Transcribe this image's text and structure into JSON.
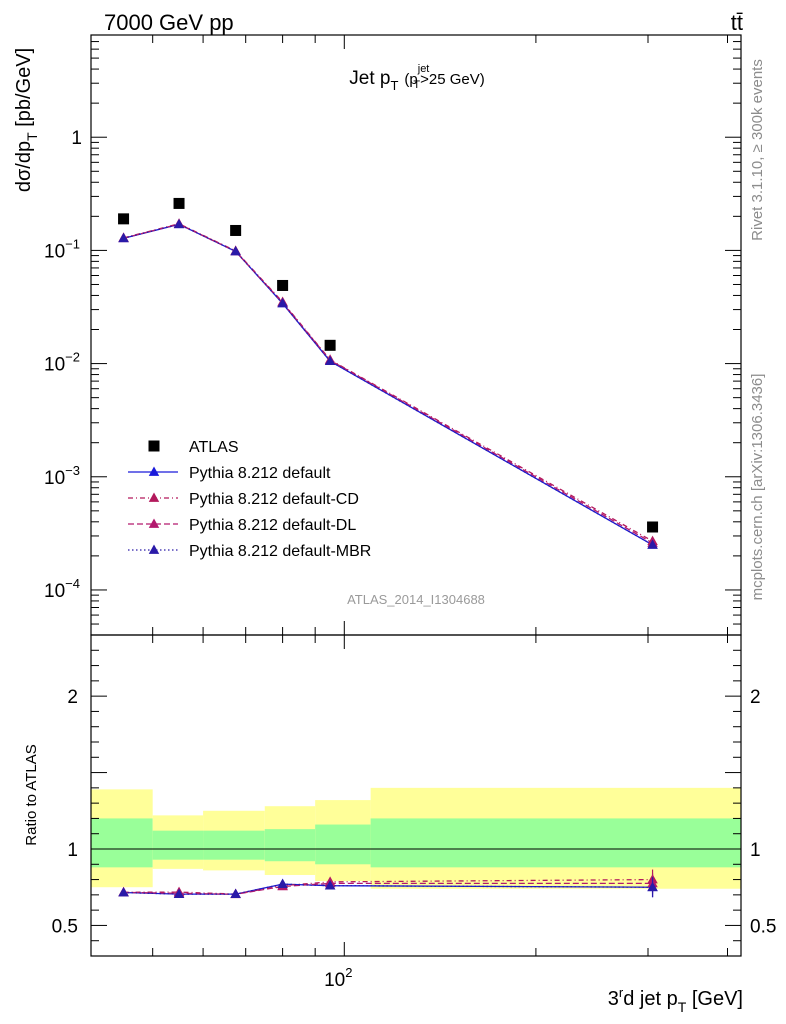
{
  "header": {
    "left": "7000 GeV pp",
    "right": "tt̄"
  },
  "side_labels": {
    "rivet": "Rivet 3.1.10, ≥ 300k events",
    "mcplots": "mcplots.cern.ch [arXiv:1306.3436]"
  },
  "chart_data": [
    {
      "type": "scatter",
      "panel": "main",
      "title": "Jet p_T (p_T^jet > 25 GeV)",
      "title_parts": {
        "main": "Jet p",
        "main_sub": "T",
        "cut_open": "(p",
        "cut_sup": "jet",
        "cut_sub": "T",
        "cut_close": ">25 GeV)"
      },
      "ylabel": "dσ/dp_T [pb/GeV]",
      "ylabel_parts": {
        "a": "dσ/dp",
        "sub": "T",
        "b": " [pb/GeV]"
      },
      "xscale": "log",
      "yscale": "log",
      "xlim": [
        40,
        420
      ],
      "ylim": [
        4e-05,
        8
      ],
      "ytick_labels": [
        {
          "base": "10",
          "exp": "−4",
          "value": 0.0001
        },
        {
          "base": "10",
          "exp": "−3",
          "value": 0.001
        },
        {
          "base": "10",
          "exp": "−2",
          "value": 0.01
        },
        {
          "base": "10",
          "exp": "−1",
          "value": 0.1
        },
        {
          "base": "1",
          "exp": "",
          "value": 1
        }
      ],
      "watermark": "ATLAS_2014_I1304688",
      "legend_position": "bottom-left",
      "x": [
        45,
        55,
        67.5,
        80,
        95,
        305
      ],
      "series": [
        {
          "name": "ATLAS",
          "marker": "square",
          "color": "#000000",
          "line": "none",
          "values": [
            0.19,
            0.26,
            0.15,
            0.049,
            0.0145,
            0.00036
          ]
        },
        {
          "name": "Pythia 8.212 default",
          "marker": "triangle",
          "color": "#1a1adb",
          "line": "solid",
          "values": [
            0.128,
            0.17,
            0.098,
            0.034,
            0.0105,
            0.00025
          ]
        },
        {
          "name": "Pythia 8.212 default-CD",
          "marker": "triangle",
          "color": "#b3195c",
          "line": "dashdot",
          "values": [
            0.129,
            0.172,
            0.099,
            0.035,
            0.0108,
            0.00027
          ]
        },
        {
          "name": "Pythia 8.212 default-DL",
          "marker": "triangle",
          "color": "#b3196e",
          "line": "dashed",
          "values": [
            0.128,
            0.171,
            0.098,
            0.0345,
            0.0107,
            0.00026
          ]
        },
        {
          "name": "Pythia 8.212 default-MBR",
          "marker": "triangle",
          "color": "#2a1aa8",
          "line": "dotted",
          "values": [
            0.128,
            0.17,
            0.098,
            0.034,
            0.0105,
            0.00025
          ]
        }
      ]
    },
    {
      "type": "line",
      "panel": "ratio",
      "ylabel": "Ratio to ATLAS",
      "xlabel": "3rd jet p_T [GeV]",
      "xlabel_parts": {
        "a": "3",
        "sup": "r",
        "b": "d jet p",
        "sub": "T",
        "c": " [GeV]"
      },
      "xscale": "log",
      "xlim": [
        40,
        420
      ],
      "ylim": [
        0.3,
        2.4
      ],
      "ytick_labels": [
        {
          "text": "0.5",
          "value": 0.5
        },
        {
          "text": "1",
          "value": 1
        },
        {
          "text": "2",
          "value": 2
        }
      ],
      "xtick_labels": [
        {
          "base": "10",
          "exp": "2",
          "value": 100
        }
      ],
      "reference_line": 1,
      "uncertainty_bands": {
        "edges": [
          40,
          50,
          60,
          75,
          90,
          110,
          420
        ],
        "green_low": [
          0.88,
          0.93,
          0.93,
          0.92,
          0.9,
          0.88
        ],
        "green_high": [
          1.2,
          1.12,
          1.12,
          1.13,
          1.16,
          1.2
        ],
        "yellow_low": [
          0.75,
          0.87,
          0.86,
          0.83,
          0.79,
          0.74
        ],
        "yellow_high": [
          1.39,
          1.22,
          1.25,
          1.28,
          1.32,
          1.4
        ],
        "inner_color": "#99ff99",
        "outer_color": "#ffff99"
      },
      "x": [
        45,
        55,
        67.5,
        80,
        95,
        305
      ],
      "series": [
        {
          "name": "Pythia 8.212 default",
          "color": "#1a1adb",
          "line": "solid",
          "values": [
            0.715,
            0.705,
            0.705,
            0.77,
            0.76,
            0.75
          ]
        },
        {
          "name": "Pythia 8.212 default-CD",
          "color": "#b3195c",
          "line": "dashdot",
          "values": [
            0.717,
            0.718,
            0.705,
            0.76,
            0.785,
            0.8
          ]
        },
        {
          "name": "Pythia 8.212 default-DL",
          "color": "#b3196e",
          "line": "dashed",
          "values": [
            0.716,
            0.71,
            0.704,
            0.755,
            0.775,
            0.775
          ]
        },
        {
          "name": "Pythia 8.212 default-MBR",
          "color": "#2a1aa8",
          "line": "dotted",
          "values": [
            0.715,
            0.705,
            0.705,
            0.77,
            0.76,
            0.75
          ]
        }
      ]
    }
  ]
}
